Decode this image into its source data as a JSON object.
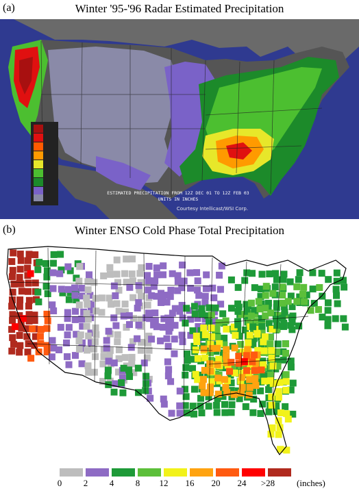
{
  "panel_a": {
    "label": "(a)",
    "title": "Winter '95-'96 Radar Estimated Precipitation",
    "legend_labels": [
      "",
      "",
      "",
      "",
      "",
      "",
      "",
      "",
      ""
    ],
    "footer_line1": "ESTIMATED PRECIPITATION FROM 12Z DEC 01 TO 12Z FEB 03",
    "footer_line2": "UNITS IN INCHES",
    "credit": "Courtesy Intellicast/WSI Corp.",
    "colors": {
      "ocean": "#2f3a90",
      "land": "#555555",
      "canada": "#6a6a6a",
      "scale": [
        "#8a8aa8",
        "#7a62c8",
        "#1c8a2a",
        "#4cbf30",
        "#e7e72a",
        "#ff9a00",
        "#ff5a00",
        "#e01010",
        "#a81010"
      ]
    }
  },
  "panel_b": {
    "label": "(b)",
    "title": "Winter ENSO Cold Phase Total Precipitation",
    "units": "(inches)",
    "ticks": [
      "0",
      "2",
      "4",
      "8",
      "12",
      "16",
      "20",
      "24",
      ">28"
    ],
    "colors": [
      "#bdbdbd",
      "#8e6bc4",
      "#1e9a38",
      "#5cbf3a",
      "#f2f21a",
      "#ffa310",
      "#ff5a10",
      "#ff0000",
      "#b02a1e"
    ]
  }
}
